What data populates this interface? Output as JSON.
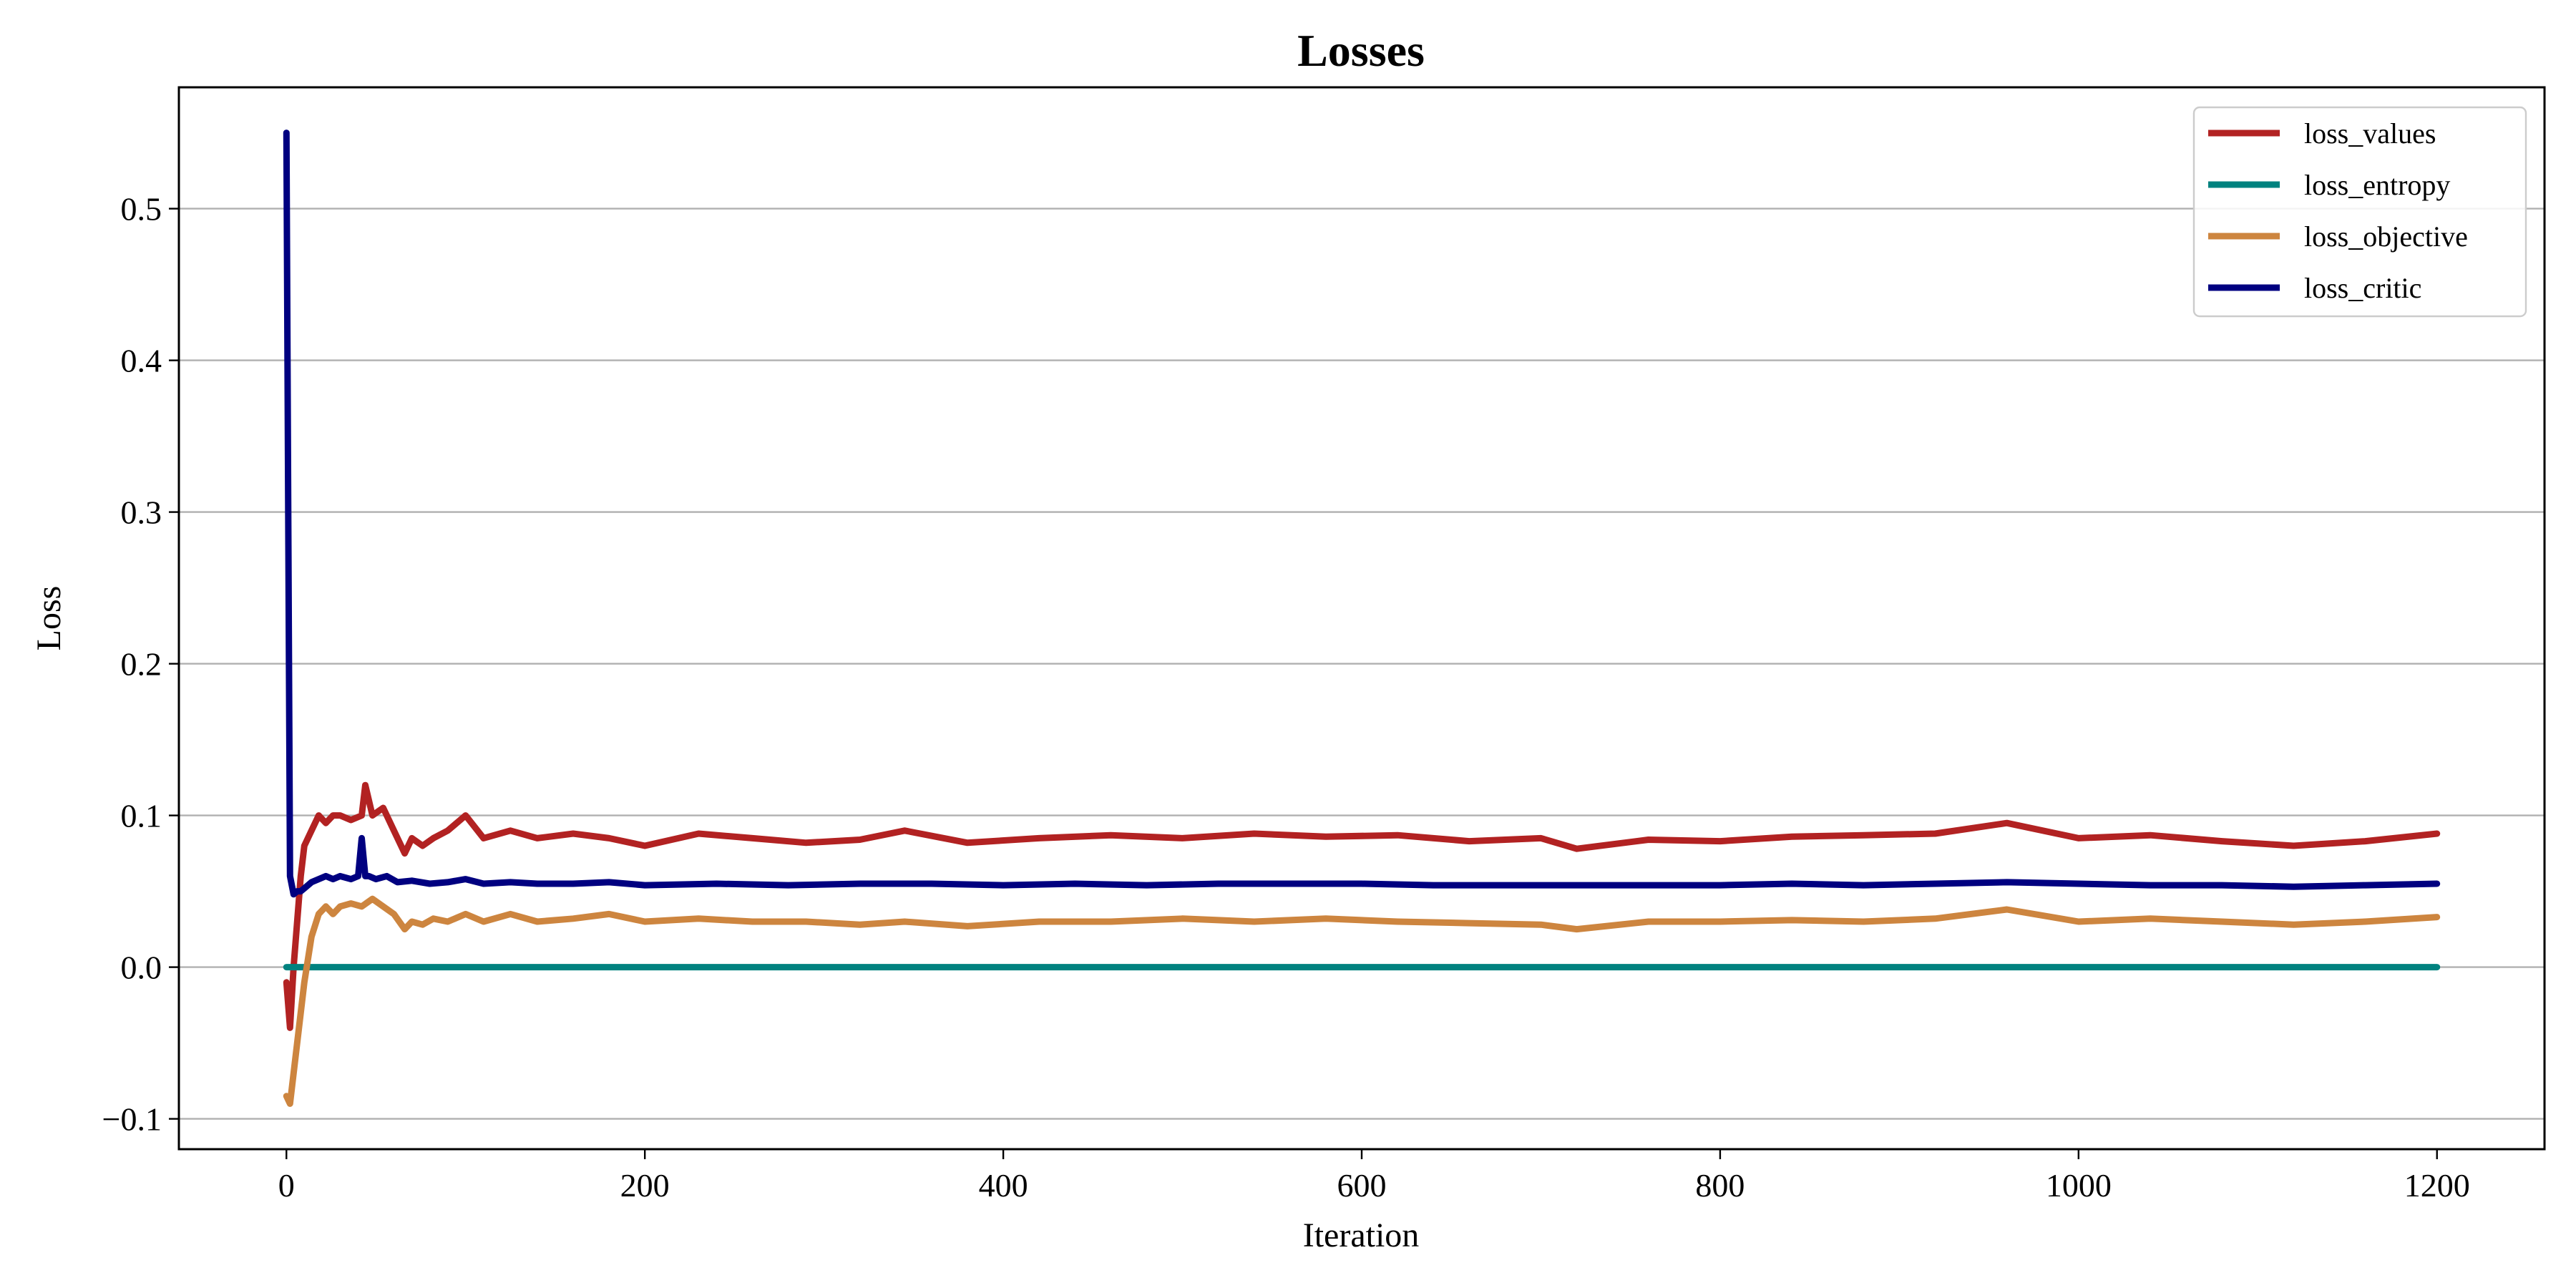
{
  "chart_data": {
    "type": "line",
    "title": "Losses",
    "xlabel": "Iteration",
    "ylabel": "Loss",
    "xlim": [
      -60,
      1260
    ],
    "ylim": [
      -0.12,
      0.58
    ],
    "xticks": [
      0,
      200,
      400,
      600,
      800,
      1000,
      1200
    ],
    "xtick_labels": [
      "0",
      "200",
      "400",
      "600",
      "800",
      "1000",
      "1200"
    ],
    "yticks": [
      -0.1,
      0.0,
      0.1,
      0.2,
      0.3,
      0.4,
      0.5
    ],
    "ytick_labels": [
      "−0.1",
      "0.0",
      "0.1",
      "0.2",
      "0.3",
      "0.4",
      "0.5"
    ],
    "grid": "horizontal",
    "legend_position": "top-right",
    "series": [
      {
        "name": "loss_values",
        "color": "#b22222",
        "x": [
          0,
          2,
          4,
          6,
          8,
          10,
          14,
          18,
          22,
          26,
          30,
          36,
          42,
          44,
          48,
          54,
          60,
          66,
          70,
          76,
          82,
          90,
          100,
          110,
          125,
          140,
          160,
          180,
          200,
          230,
          260,
          290,
          320,
          345,
          380,
          420,
          460,
          500,
          540,
          580,
          620,
          660,
          700,
          720,
          760,
          800,
          840,
          880,
          920,
          960,
          1000,
          1040,
          1080,
          1120,
          1160,
          1200
        ],
        "y": [
          -0.01,
          -0.04,
          0.0,
          0.03,
          0.06,
          0.08,
          0.09,
          0.1,
          0.095,
          0.1,
          0.1,
          0.097,
          0.1,
          0.12,
          0.1,
          0.105,
          0.09,
          0.075,
          0.085,
          0.08,
          0.085,
          0.09,
          0.1,
          0.085,
          0.09,
          0.085,
          0.088,
          0.085,
          0.08,
          0.088,
          0.085,
          0.082,
          0.084,
          0.09,
          0.082,
          0.085,
          0.087,
          0.085,
          0.088,
          0.086,
          0.087,
          0.083,
          0.085,
          0.078,
          0.084,
          0.083,
          0.086,
          0.087,
          0.088,
          0.095,
          0.085,
          0.087,
          0.083,
          0.08,
          0.083,
          0.088
        ]
      },
      {
        "name": "loss_entropy",
        "color": "#00827f",
        "x": [
          0,
          1200
        ],
        "y": [
          0.0,
          0.0
        ]
      },
      {
        "name": "loss_objective",
        "color": "#cd853f",
        "x": [
          0,
          2,
          4,
          6,
          8,
          10,
          14,
          18,
          22,
          26,
          30,
          36,
          42,
          48,
          54,
          60,
          66,
          70,
          76,
          82,
          90,
          100,
          110,
          125,
          140,
          160,
          180,
          200,
          230,
          260,
          290,
          320,
          345,
          380,
          420,
          460,
          500,
          540,
          580,
          620,
          660,
          700,
          720,
          760,
          800,
          840,
          880,
          920,
          960,
          1000,
          1040,
          1080,
          1120,
          1160,
          1200
        ],
        "y": [
          -0.085,
          -0.09,
          -0.07,
          -0.05,
          -0.03,
          -0.01,
          0.02,
          0.035,
          0.04,
          0.035,
          0.04,
          0.042,
          0.04,
          0.045,
          0.04,
          0.035,
          0.025,
          0.03,
          0.028,
          0.032,
          0.03,
          0.035,
          0.03,
          0.035,
          0.03,
          0.032,
          0.035,
          0.03,
          0.032,
          0.03,
          0.03,
          0.028,
          0.03,
          0.027,
          0.03,
          0.03,
          0.032,
          0.03,
          0.032,
          0.03,
          0.029,
          0.028,
          0.025,
          0.03,
          0.03,
          0.031,
          0.03,
          0.032,
          0.038,
          0.03,
          0.032,
          0.03,
          0.028,
          0.03,
          0.033
        ]
      },
      {
        "name": "loss_critic",
        "color": "#000080",
        "x": [
          0,
          1,
          2,
          4,
          6,
          8,
          10,
          14,
          18,
          22,
          26,
          30,
          36,
          40,
          42,
          44,
          46,
          50,
          56,
          62,
          70,
          80,
          90,
          100,
          110,
          125,
          140,
          160,
          180,
          200,
          240,
          280,
          320,
          360,
          400,
          440,
          480,
          520,
          560,
          600,
          640,
          680,
          720,
          760,
          800,
          840,
          880,
          920,
          960,
          1000,
          1040,
          1080,
          1120,
          1160,
          1200
        ],
        "y": [
          0.55,
          0.3,
          0.06,
          0.048,
          0.05,
          0.05,
          0.052,
          0.056,
          0.058,
          0.06,
          0.058,
          0.06,
          0.058,
          0.06,
          0.085,
          0.06,
          0.06,
          0.058,
          0.06,
          0.056,
          0.057,
          0.055,
          0.056,
          0.058,
          0.055,
          0.056,
          0.055,
          0.055,
          0.056,
          0.054,
          0.055,
          0.054,
          0.055,
          0.055,
          0.054,
          0.055,
          0.054,
          0.055,
          0.055,
          0.055,
          0.054,
          0.054,
          0.054,
          0.054,
          0.054,
          0.055,
          0.054,
          0.055,
          0.056,
          0.055,
          0.054,
          0.054,
          0.053,
          0.054,
          0.055
        ]
      }
    ]
  }
}
